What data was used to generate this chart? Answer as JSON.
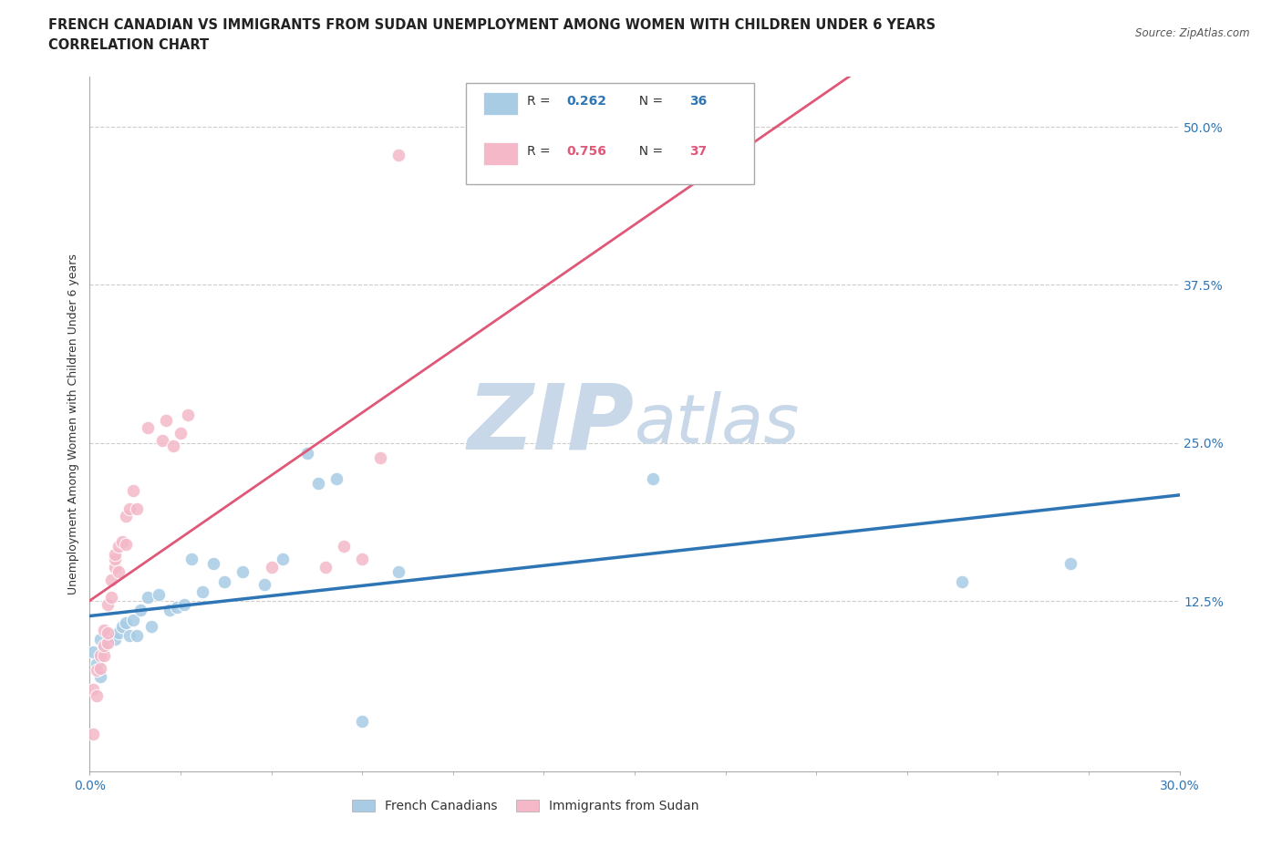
{
  "title_line1": "FRENCH CANADIAN VS IMMIGRANTS FROM SUDAN UNEMPLOYMENT AMONG WOMEN WITH CHILDREN UNDER 6 YEARS",
  "title_line2": "CORRELATION CHART",
  "source": "Source: ZipAtlas.com",
  "ylabel": "Unemployment Among Women with Children Under 6 years",
  "ytick_labels": [
    "50.0%",
    "37.5%",
    "25.0%",
    "12.5%"
  ],
  "ytick_values": [
    0.5,
    0.375,
    0.25,
    0.125
  ],
  "legend_r1": "0.262",
  "legend_n1": "36",
  "legend_r2": "0.756",
  "legend_n2": "37",
  "legend_label1": "French Canadians",
  "legend_label2": "Immigrants from Sudan",
  "blue_color": "#a8cce4",
  "pink_color": "#f4b8c8",
  "trendline_blue": "#2e75b6",
  "trendline_pink": "#e05878",
  "watermark_zip": "ZIP",
  "watermark_atlas": "atlas",
  "watermark_color": "#c8d8e8",
  "xmin": 0.0,
  "xmax": 0.3,
  "ymin": -0.01,
  "ymax": 0.54,
  "blue_x": [
    0.001,
    0.002,
    0.003,
    0.003,
    0.004,
    0.005,
    0.006,
    0.007,
    0.008,
    0.009,
    0.01,
    0.011,
    0.012,
    0.013,
    0.014,
    0.016,
    0.017,
    0.019,
    0.022,
    0.024,
    0.026,
    0.028,
    0.031,
    0.034,
    0.037,
    0.042,
    0.048,
    0.053,
    0.06,
    0.063,
    0.068,
    0.075,
    0.085,
    0.155,
    0.24,
    0.27
  ],
  "blue_y": [
    0.085,
    0.075,
    0.095,
    0.065,
    0.088,
    0.092,
    0.098,
    0.095,
    0.1,
    0.105,
    0.108,
    0.098,
    0.11,
    0.098,
    0.118,
    0.128,
    0.105,
    0.13,
    0.118,
    0.12,
    0.122,
    0.158,
    0.132,
    0.155,
    0.14,
    0.148,
    0.138,
    0.158,
    0.242,
    0.218,
    0.222,
    0.03,
    0.148,
    0.222,
    0.14,
    0.155
  ],
  "pink_x": [
    0.001,
    0.001,
    0.002,
    0.002,
    0.003,
    0.003,
    0.004,
    0.004,
    0.004,
    0.005,
    0.005,
    0.005,
    0.006,
    0.006,
    0.007,
    0.007,
    0.007,
    0.008,
    0.008,
    0.009,
    0.01,
    0.01,
    0.011,
    0.012,
    0.013,
    0.016,
    0.02,
    0.021,
    0.023,
    0.025,
    0.027,
    0.05,
    0.065,
    0.07,
    0.075,
    0.08,
    0.085
  ],
  "pink_y": [
    0.02,
    0.055,
    0.05,
    0.07,
    0.072,
    0.082,
    0.082,
    0.09,
    0.102,
    0.092,
    0.1,
    0.122,
    0.128,
    0.142,
    0.152,
    0.158,
    0.162,
    0.148,
    0.168,
    0.172,
    0.17,
    0.192,
    0.198,
    0.212,
    0.198,
    0.262,
    0.252,
    0.268,
    0.248,
    0.258,
    0.272,
    0.152,
    0.152,
    0.168,
    0.158,
    0.238,
    0.478
  ]
}
